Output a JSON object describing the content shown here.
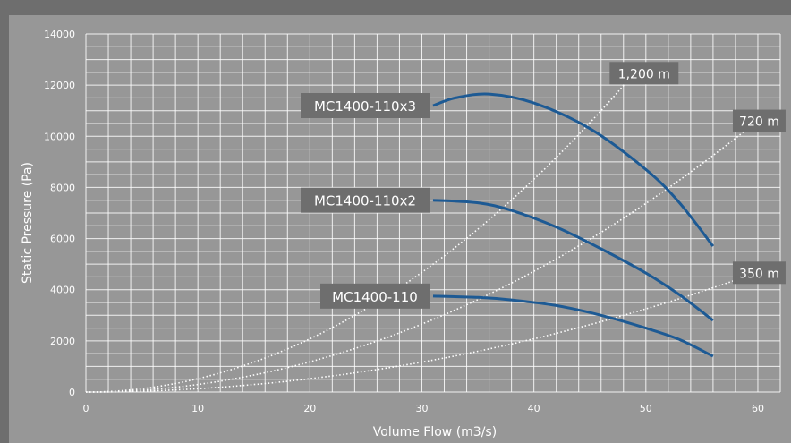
{
  "chart_data": {
    "type": "line",
    "title": "",
    "xlabel": "Volume Flow (m3/s)",
    "ylabel": "Static Pressure (Pa)",
    "xlim": [
      0,
      62
    ],
    "ylim": [
      0,
      14000
    ],
    "x_ticks": [
      0,
      10,
      20,
      30,
      40,
      50,
      60
    ],
    "y_ticks": [
      0,
      2000,
      4000,
      6000,
      8000,
      10000,
      12000,
      14000
    ],
    "grid": true,
    "colors": {
      "fan_curve": "#1d5a94",
      "system_curve": "#ffffff",
      "label_box": "#6e6e6e",
      "background": "#979797"
    },
    "fan_curves": [
      {
        "name": "MC1400-110x3",
        "points": [
          [
            31,
            11200
          ],
          [
            33,
            11500
          ],
          [
            36,
            11650
          ],
          [
            40,
            11300
          ],
          [
            45,
            10300
          ],
          [
            50,
            8700
          ],
          [
            53,
            7400
          ],
          [
            56,
            5700
          ]
        ]
      },
      {
        "name": "MC1400-110x2",
        "points": [
          [
            31,
            7500
          ],
          [
            35,
            7400
          ],
          [
            38,
            7100
          ],
          [
            42,
            6450
          ],
          [
            46,
            5600
          ],
          [
            50,
            4650
          ],
          [
            53,
            3800
          ],
          [
            56,
            2800
          ]
        ]
      },
      {
        "name": "MC1400-110",
        "points": [
          [
            31,
            3750
          ],
          [
            35,
            3700
          ],
          [
            38,
            3600
          ],
          [
            42,
            3380
          ],
          [
            46,
            3000
          ],
          [
            50,
            2500
          ],
          [
            53,
            2050
          ],
          [
            56,
            1400
          ]
        ]
      }
    ],
    "system_curves": [
      {
        "name": "1,200 m",
        "k": 5.2,
        "x_end": 49
      },
      {
        "name": "720 m",
        "k": 2.95,
        "x_end": 60
      },
      {
        "name": "350 m",
        "k": 1.3,
        "x_end": 60
      }
    ]
  }
}
